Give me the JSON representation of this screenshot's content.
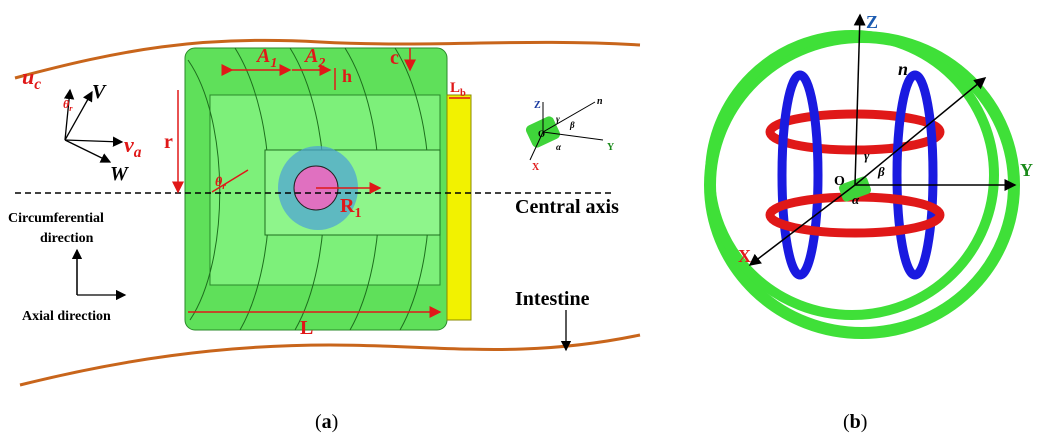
{
  "panel_a": {
    "uc": {
      "main": "u",
      "sub": "c"
    },
    "V": "V",
    "theta_small": {
      "main": "θ",
      "sub": "r"
    },
    "va": {
      "main": "v",
      "sub": "a"
    },
    "W": "W",
    "A1": {
      "main": "A",
      "sub": "1"
    },
    "A2": {
      "main": "A",
      "sub": "2"
    },
    "c": "c",
    "h": "h",
    "r": "r",
    "Lb": {
      "main": "L",
      "sub": "b"
    },
    "theta": {
      "main": "θ",
      "sub": "r"
    },
    "R1": {
      "main": "R",
      "sub": "1"
    },
    "central_axis": "Central axis",
    "circumferential": [
      "Circumferential",
      "direction"
    ],
    "axial": "Axial direction",
    "intestine": "Intestine",
    "L": "L",
    "inset": {
      "Z": "Z",
      "n": "n",
      "O": "O",
      "gamma": "γ",
      "beta": "β",
      "alpha": "α",
      "X": "X",
      "Y": "Y"
    },
    "caption": {
      "open": "(",
      "letter": "a",
      "close": ")"
    }
  },
  "panel_b": {
    "Z": "Z",
    "n": "n",
    "Y": "Y",
    "X": "X",
    "O": "O",
    "gamma": "γ",
    "beta": "β",
    "alpha": "α",
    "caption": {
      "open": "(",
      "letter": "b",
      "close": ")"
    }
  }
}
